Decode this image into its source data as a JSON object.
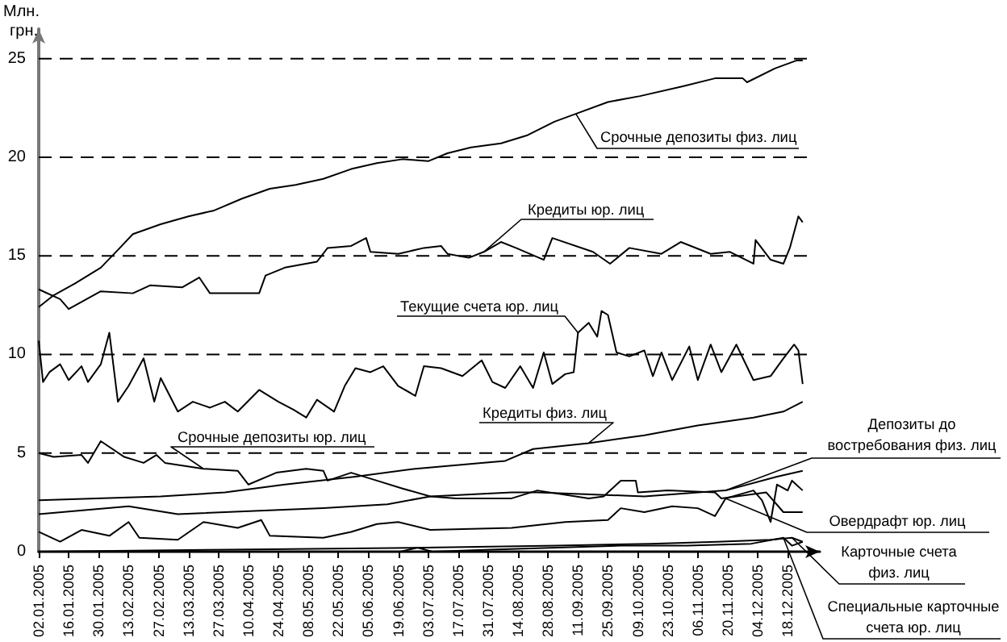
{
  "chart_data": {
    "type": "line",
    "ylabel": "Млн. грн.",
    "marker": "none",
    "grid": "y",
    "xlim": [
      "2005-01-02",
      "2006-01-02"
    ],
    "xticks": [
      {
        "value": "2005-01-02",
        "label": "02.01.2005"
      },
      {
        "value": "2005-01-16",
        "label": "16.01.2005"
      },
      {
        "value": "2005-01-30",
        "label": "30.01.2005"
      },
      {
        "value": "2005-02-13",
        "label": "13.02.2005"
      },
      {
        "value": "2005-02-27",
        "label": "27.02.2005"
      },
      {
        "value": "2005-03-13",
        "label": "13.03.2005"
      },
      {
        "value": "2005-03-27",
        "label": "27.03.2005"
      },
      {
        "value": "2005-04-10",
        "label": "10.04.2005"
      },
      {
        "value": "2005-04-24",
        "label": "24.04.2005"
      },
      {
        "value": "2005-05-08",
        "label": "08.05.2005"
      },
      {
        "value": "2005-05-22",
        "label": "22.05.2005"
      },
      {
        "value": "2005-06-05",
        "label": "05.06.2005"
      },
      {
        "value": "2005-06-19",
        "label": "19.06.2005"
      },
      {
        "value": "2005-07-03",
        "label": "03.07.2005"
      },
      {
        "value": "2005-07-17",
        "label": "17.07.2005"
      },
      {
        "value": "2005-07-31",
        "label": "31.07.2005"
      },
      {
        "value": "2005-08-14",
        "label": "14.08.2005"
      },
      {
        "value": "2005-08-28",
        "label": "28.08.2005"
      },
      {
        "value": "2005-09-11",
        "label": "11.09.2005"
      },
      {
        "value": "2005-09-25",
        "label": "25.09.2005"
      },
      {
        "value": "2005-10-09",
        "label": "09.10.2005"
      },
      {
        "value": "2005-10-23",
        "label": "23.10.2005"
      },
      {
        "value": "2005-11-06",
        "label": "06.11.2005"
      },
      {
        "value": "2005-11-20",
        "label": "20.11.2005"
      },
      {
        "value": "2005-12-04",
        "label": "04.12.2005"
      },
      {
        "value": "2005-12-18",
        "label": "18.12.2005"
      }
    ],
    "ylim": [
      0,
      26.5
    ],
    "yticks": [
      0,
      5,
      10,
      15,
      20,
      25
    ],
    "series": [
      {
        "name": "Срочные депозиты физ. лиц",
        "color": "#000000",
        "x": [
          "2005-01-02",
          "2005-01-09",
          "2005-01-19",
          "2005-01-31",
          "2005-02-08",
          "2005-02-15",
          "2005-02-28",
          "2005-03-13",
          "2005-03-25",
          "2005-04-07",
          "2005-04-20",
          "2005-05-02",
          "2005-05-15",
          "2005-05-28",
          "2005-06-09",
          "2005-06-21",
          "2005-07-03",
          "2005-07-12",
          "2005-07-23",
          "2005-08-06",
          "2005-08-18",
          "2005-08-31",
          "2005-09-10",
          "2005-09-25",
          "2005-10-10",
          "2005-10-30",
          "2005-11-14",
          "2005-11-27",
          "2005-11-29",
          "2005-12-12",
          "2005-12-22",
          "2005-12-25"
        ],
        "values": [
          12.4,
          13.0,
          13.6,
          14.4,
          15.3,
          16.1,
          16.6,
          17.0,
          17.3,
          17.9,
          18.4,
          18.6,
          18.9,
          19.4,
          19.7,
          19.9,
          19.8,
          20.2,
          20.5,
          20.7,
          21.1,
          21.8,
          22.2,
          22.8,
          23.1,
          23.6,
          24.0,
          24.0,
          23.8,
          24.5,
          24.9,
          24.9
        ]
      },
      {
        "name": "Кредиты юр. лиц",
        "color": "#000000",
        "x": [
          "2005-01-02",
          "2005-01-12",
          "2005-01-16",
          "2005-01-31",
          "2005-02-15",
          "2005-02-23",
          "2005-03-10",
          "2005-03-18",
          "2005-03-23",
          "2005-04-15",
          "2005-04-18",
          "2005-04-27",
          "2005-05-12",
          "2005-05-17",
          "2005-05-28",
          "2005-06-04",
          "2005-06-06",
          "2005-06-19",
          "2005-07-01",
          "2005-07-09",
          "2005-07-12",
          "2005-07-22",
          "2005-07-29",
          "2005-08-06",
          "2005-08-13",
          "2005-08-26",
          "2005-08-30",
          "2005-09-18",
          "2005-09-26",
          "2005-10-05",
          "2005-10-20",
          "2005-10-29",
          "2005-11-12",
          "2005-11-21",
          "2005-12-02",
          "2005-12-03",
          "2005-12-10",
          "2005-12-16",
          "2005-12-19",
          "2005-12-23",
          "2005-12-25"
        ],
        "values": [
          13.3,
          12.8,
          12.3,
          13.2,
          13.1,
          13.5,
          13.4,
          13.9,
          13.1,
          13.1,
          14.0,
          14.4,
          14.7,
          15.4,
          15.5,
          15.9,
          15.2,
          15.1,
          15.4,
          15.5,
          15.1,
          14.9,
          15.2,
          15.7,
          15.4,
          14.8,
          15.9,
          15.2,
          14.6,
          15.4,
          15.1,
          15.7,
          15.1,
          15.2,
          14.6,
          15.8,
          14.8,
          14.6,
          15.4,
          17.0,
          16.7
        ]
      },
      {
        "name": "Текущие счета юр. лиц",
        "color": "#000000",
        "x": [
          "2005-01-02",
          "2005-01-04",
          "2005-01-07",
          "2005-01-12",
          "2005-01-16",
          "2005-01-22",
          "2005-01-25",
          "2005-01-31",
          "2005-02-04",
          "2005-02-08",
          "2005-02-13",
          "2005-02-20",
          "2005-02-25",
          "2005-02-28",
          "2005-03-08",
          "2005-03-15",
          "2005-03-23",
          "2005-03-30",
          "2005-04-05",
          "2005-04-15",
          "2005-04-24",
          "2005-05-01",
          "2005-05-07",
          "2005-05-12",
          "2005-05-20",
          "2005-05-25",
          "2005-05-30",
          "2005-06-06",
          "2005-06-12",
          "2005-06-19",
          "2005-06-27",
          "2005-07-01",
          "2005-07-09",
          "2005-07-19",
          "2005-07-28",
          "2005-08-02",
          "2005-08-08",
          "2005-08-15",
          "2005-08-21",
          "2005-08-26",
          "2005-08-30",
          "2005-09-05",
          "2005-09-09",
          "2005-09-11",
          "2005-09-16",
          "2005-09-20",
          "2005-09-22",
          "2005-09-25",
          "2005-09-29",
          "2005-10-05",
          "2005-10-12",
          "2005-10-16",
          "2005-10-20",
          "2005-10-25",
          "2005-11-02",
          "2005-11-06",
          "2005-11-12",
          "2005-11-17",
          "2005-11-24",
          "2005-12-02",
          "2005-12-10",
          "2005-12-16",
          "2005-12-21",
          "2005-12-23",
          "2005-12-25"
        ],
        "values": [
          10.7,
          8.6,
          9.1,
          9.5,
          8.7,
          9.4,
          8.6,
          9.5,
          11.1,
          7.6,
          8.4,
          9.8,
          7.6,
          8.8,
          7.1,
          7.6,
          7.3,
          7.6,
          7.1,
          8.2,
          7.6,
          7.2,
          6.8,
          7.7,
          7.1,
          8.4,
          9.3,
          9.1,
          9.4,
          8.4,
          7.9,
          9.4,
          9.3,
          8.9,
          9.7,
          8.6,
          8.3,
          9.4,
          8.3,
          10.1,
          8.5,
          9.0,
          9.1,
          11.1,
          11.6,
          10.9,
          12.2,
          12.0,
          10.1,
          9.9,
          10.2,
          8.9,
          10.1,
          8.7,
          10.4,
          8.7,
          10.5,
          9.1,
          10.5,
          8.7,
          8.9,
          9.8,
          10.5,
          10.2,
          8.5
        ]
      },
      {
        "name": "Кредиты физ. лиц",
        "color": "#000000",
        "x": [
          "2005-01-02",
          "2005-02-28",
          "2005-03-30",
          "2005-04-27",
          "2005-05-30",
          "2005-06-27",
          "2005-07-28",
          "2005-08-08",
          "2005-08-21",
          "2005-09-16",
          "2005-10-12",
          "2005-11-06",
          "2005-12-02",
          "2005-12-16",
          "2005-12-25"
        ],
        "values": [
          2.6,
          2.8,
          3.0,
          3.4,
          3.8,
          4.2,
          4.5,
          4.6,
          5.2,
          5.5,
          5.9,
          6.4,
          6.8,
          7.1,
          7.6
        ]
      },
      {
        "name": "Срочные депозиты юр. лиц",
        "color": "#000000",
        "x": [
          "2005-01-02",
          "2005-01-09",
          "2005-01-22",
          "2005-01-25",
          "2005-01-31",
          "2005-02-11",
          "2005-02-20",
          "2005-02-26",
          "2005-03-02",
          "2005-03-20",
          "2005-04-05",
          "2005-04-10",
          "2005-04-23",
          "2005-05-07",
          "2005-05-15",
          "2005-05-17",
          "2005-05-28",
          "2005-06-09",
          "2005-06-21",
          "2005-07-04",
          "2005-07-16",
          "2005-08-11",
          "2005-08-23",
          "2005-09-16",
          "2005-09-23",
          "2005-10-01",
          "2005-10-08",
          "2005-10-09",
          "2005-10-23",
          "2005-11-14",
          "2005-11-17",
          "2005-12-08",
          "2005-12-16",
          "2005-12-25"
        ],
        "values": [
          5.0,
          4.8,
          4.9,
          4.5,
          5.6,
          4.8,
          4.5,
          4.9,
          4.5,
          4.2,
          4.1,
          3.4,
          4.0,
          4.2,
          4.1,
          3.6,
          4.0,
          3.6,
          3.2,
          2.8,
          2.7,
          2.7,
          3.1,
          2.7,
          2.8,
          3.6,
          3.6,
          3.0,
          3.1,
          3.0,
          2.7,
          3.0,
          2.0,
          2.0
        ]
      },
      {
        "name": "Депозиты до востребования физ. лиц",
        "color": "#000000",
        "x": [
          "2005-01-02",
          "2005-02-13",
          "2005-03-08",
          "2005-05-15",
          "2005-06-14",
          "2005-07-04",
          "2005-08-11",
          "2005-08-23",
          "2005-10-12",
          "2005-11-19",
          "2005-12-13",
          "2005-12-25"
        ],
        "values": [
          1.9,
          2.3,
          1.9,
          2.2,
          2.4,
          2.8,
          3.0,
          3.0,
          2.8,
          3.1,
          3.8,
          4.1
        ]
      },
      {
        "name": "Овердрафт юр. лиц",
        "color": "#000000",
        "x": [
          "2005-01-02",
          "2005-01-12",
          "2005-01-22",
          "2005-02-04",
          "2005-02-13",
          "2005-02-18",
          "2005-03-08",
          "2005-03-20",
          "2005-04-05",
          "2005-04-16",
          "2005-04-20",
          "2005-05-15",
          "2005-05-28",
          "2005-06-09",
          "2005-06-19",
          "2005-07-04",
          "2005-08-11",
          "2005-09-05",
          "2005-09-25",
          "2005-10-01",
          "2005-10-12",
          "2005-10-25",
          "2005-11-06",
          "2005-11-14",
          "2005-11-19",
          "2005-12-02",
          "2005-12-06",
          "2005-12-10",
          "2005-12-13",
          "2005-12-18",
          "2005-12-20",
          "2005-12-25"
        ],
        "values": [
          1.0,
          0.5,
          1.1,
          0.8,
          1.5,
          0.7,
          0.6,
          1.5,
          1.2,
          1.6,
          0.8,
          0.7,
          1.0,
          1.4,
          1.5,
          1.1,
          1.2,
          1.5,
          1.6,
          2.2,
          2.0,
          2.3,
          2.2,
          1.8,
          2.7,
          3.1,
          2.6,
          1.5,
          3.4,
          3.1,
          3.6,
          3.1
        ]
      },
      {
        "name": "Карточные счета физ. лиц",
        "color": "#000000",
        "x": [
          "2005-01-02",
          "2005-04-01",
          "2005-07-01",
          "2005-09-01",
          "2005-10-15",
          "2005-11-15",
          "2005-12-10",
          "2005-12-20",
          "2005-12-25"
        ],
        "values": [
          0,
          0.1,
          0.2,
          0.3,
          0.4,
          0.5,
          0.6,
          0.7,
          0.5
        ]
      },
      {
        "name": "Специальные карточные счета юр. лиц",
        "color": "#000000",
        "x": [
          "2005-01-02",
          "2005-06-20",
          "2005-06-28",
          "2005-07-05",
          "2005-08-01",
          "2005-09-01",
          "2005-10-01",
          "2005-11-01",
          "2005-12-01",
          "2005-12-16",
          "2005-12-20",
          "2005-12-25"
        ],
        "values": [
          0,
          0,
          0.2,
          0,
          0.1,
          0.2,
          0.3,
          0.3,
          0.4,
          0.7,
          0.3,
          0.5
        ]
      }
    ]
  }
}
